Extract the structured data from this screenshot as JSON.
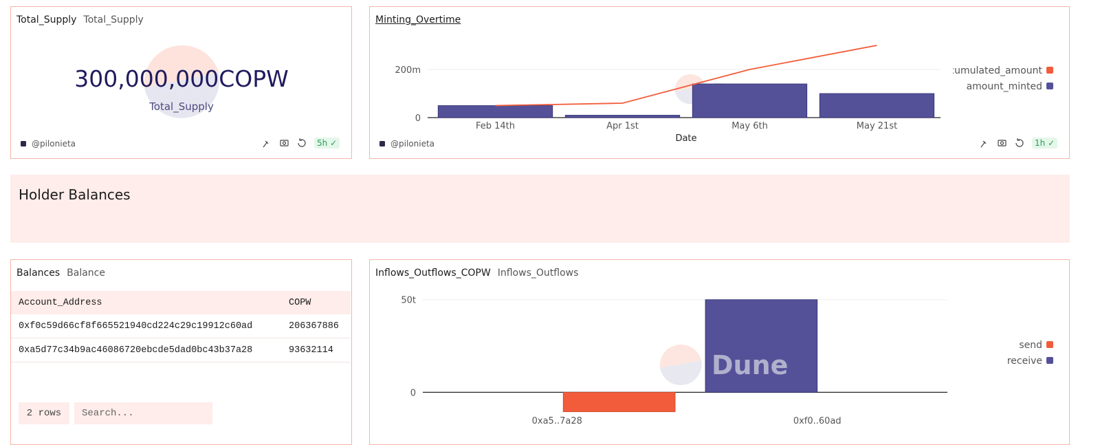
{
  "counter": {
    "title": "Total_Supply",
    "subtitle": "Total_Supply",
    "value_text": "300,000,000COPW",
    "label": "Total_Supply",
    "author": "@pilonieta",
    "age": "5h"
  },
  "minting_meta": {
    "author": "@pilonieta",
    "age": "1h"
  },
  "watermark": "Dune",
  "section": {
    "title": "Holder Balances"
  },
  "table": {
    "title": "Balances",
    "subtitle": "Balance",
    "columns": [
      "Account_Address",
      "COPW"
    ],
    "rows": [
      [
        "0xf0c59d66cf8f665521940cd224c29c19912c60ad",
        206367886
      ],
      [
        "0xa5d77c34b9ac46086720ebcde5dad0bc43b37a28",
        93632114
      ]
    ],
    "row_count": "2 rows",
    "search_placeholder": "Search..."
  },
  "chart_data": [
    {
      "type": "bar",
      "title": "Minting_Overtime",
      "x_label": "Date",
      "categories": [
        "Feb 14th",
        "Apr 1st",
        "May 6th",
        "May 21st"
      ],
      "series": [
        {
          "name": "accumulated_amount",
          "color": "#f25c3b",
          "type": "line",
          "values": [
            50000000,
            60000000,
            200000000,
            300000000
          ]
        },
        {
          "name": "amount_minted",
          "color": "#545199",
          "type": "bar",
          "values": [
            50000000,
            10000000,
            140000000,
            100000000
          ]
        }
      ],
      "ylim": [
        0,
        320000000
      ],
      "yticks": [
        0,
        {
          "value": 200000000,
          "label": "200m"
        }
      ],
      "grid": true,
      "legend": "right"
    },
    {
      "type": "bar",
      "title": "Inflows_Outflows_COPW",
      "subtitle": "Inflows_Outflows",
      "categories": [
        "0xa5..7a28",
        "0xf0..60ad"
      ],
      "series": [
        {
          "name": "send",
          "color": "#f25c3b",
          "values": [
            -10500000000000,
            null
          ]
        },
        {
          "name": "receive",
          "color": "#545199",
          "values": [
            null,
            50000000000000
          ]
        }
      ],
      "ylim": [
        -11000000000000,
        51000000000000
      ],
      "yticks": [
        0,
        {
          "value": 50000000000000,
          "label": "50t"
        }
      ],
      "grid": true,
      "legend": "right"
    }
  ]
}
